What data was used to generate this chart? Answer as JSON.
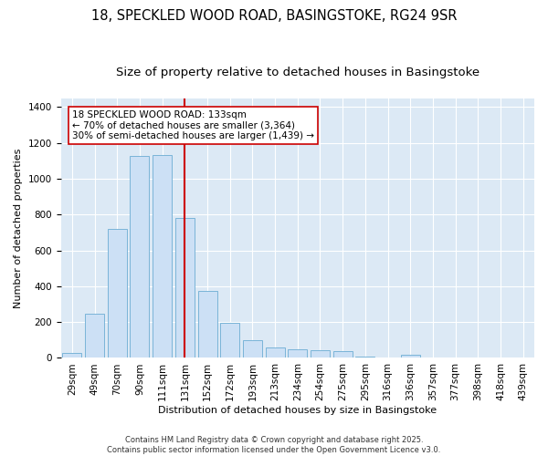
{
  "title": "18, SPECKLED WOOD ROAD, BASINGSTOKE, RG24 9SR",
  "subtitle": "Size of property relative to detached houses in Basingstoke",
  "xlabel": "Distribution of detached houses by size in Basingstoke",
  "ylabel": "Number of detached properties",
  "categories": [
    "29sqm",
    "49sqm",
    "70sqm",
    "90sqm",
    "111sqm",
    "131sqm",
    "152sqm",
    "172sqm",
    "193sqm",
    "213sqm",
    "234sqm",
    "254sqm",
    "275sqm",
    "295sqm",
    "316sqm",
    "336sqm",
    "357sqm",
    "377sqm",
    "398sqm",
    "418sqm",
    "439sqm"
  ],
  "values": [
    28,
    248,
    718,
    1128,
    1132,
    780,
    375,
    195,
    100,
    60,
    50,
    42,
    38,
    8,
    0,
    18,
    0,
    0,
    0,
    0,
    0
  ],
  "bar_color": "#cce0f5",
  "bar_edge_color": "#7ab4d8",
  "vline_color": "#cc0000",
  "annotation_text": "18 SPECKLED WOOD ROAD: 133sqm\n← 70% of detached houses are smaller (3,364)\n30% of semi-detached houses are larger (1,439) →",
  "annotation_box_color": "#ffffff",
  "annotation_box_edge": "#cc0000",
  "ylim": [
    0,
    1450
  ],
  "background_color": "#dce9f5",
  "footer_text": "Contains HM Land Registry data © Crown copyright and database right 2025.\nContains public sector information licensed under the Open Government Licence v3.0.",
  "title_fontsize": 10.5,
  "subtitle_fontsize": 9.5,
  "ylabel_fontsize": 8,
  "xlabel_fontsize": 8,
  "tick_fontsize": 7.5,
  "annotation_fontsize": 7.5,
  "footer_fontsize": 6
}
